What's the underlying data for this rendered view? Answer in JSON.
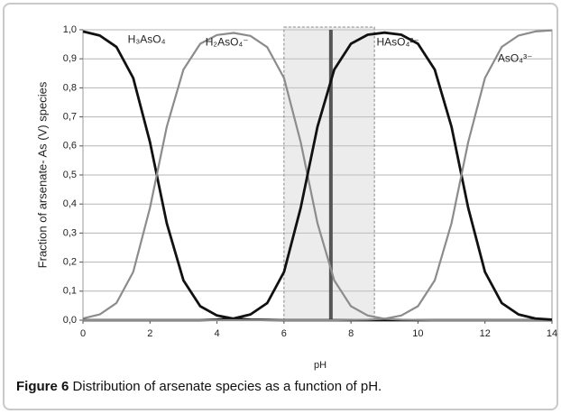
{
  "chart_data": {
    "type": "line",
    "y_label": "Fraction of arsenate- As (V) species",
    "x_label": "pH",
    "x": [
      0,
      0.5,
      1,
      1.5,
      2,
      2.5,
      3,
      3.5,
      4,
      4.5,
      5,
      5.5,
      6,
      6.5,
      7,
      7.5,
      8,
      8.5,
      9,
      9.5,
      10,
      10.5,
      11,
      11.5,
      12,
      12.5,
      13,
      13.5,
      14
    ],
    "series": [
      {
        "name": "H₃AsO₄",
        "color": "#111111",
        "values": [
          0.994,
          0.98,
          0.941,
          0.834,
          0.613,
          0.334,
          0.137,
          0.048,
          0.016,
          0.005,
          0.002,
          0.001,
          0,
          0,
          0,
          0,
          0,
          0,
          0,
          0,
          0,
          0,
          0,
          0,
          0,
          0,
          0,
          0,
          0
        ]
      },
      {
        "name": "H₂AsO₄⁻",
        "color": "#8c8c8c",
        "values": [
          0.006,
          0.02,
          0.059,
          0.166,
          0.387,
          0.666,
          0.863,
          0.952,
          0.982,
          0.989,
          0.979,
          0.94,
          0.834,
          0.613,
          0.334,
          0.137,
          0.048,
          0.016,
          0.005,
          0.002,
          0.001,
          0,
          0,
          0,
          0,
          0,
          0,
          0,
          0
        ]
      },
      {
        "name": "HAsO₄²⁻",
        "color": "#111111",
        "values": [
          0,
          0,
          0,
          0,
          0,
          0,
          0,
          0,
          0.002,
          0.006,
          0.02,
          0.059,
          0.166,
          0.387,
          0.666,
          0.863,
          0.952,
          0.983,
          0.99,
          0.983,
          0.952,
          0.863,
          0.666,
          0.387,
          0.166,
          0.059,
          0.02,
          0.006,
          0.002
        ]
      },
      {
        "name": "AsO₄³⁻",
        "color": "#8c8c8c",
        "values": [
          0,
          0,
          0,
          0,
          0,
          0,
          0,
          0,
          0,
          0,
          0,
          0,
          0,
          0,
          0,
          0,
          0.001,
          0.002,
          0.005,
          0.016,
          0.048,
          0.137,
          0.334,
          0.613,
          0.834,
          0.941,
          0.98,
          0.994,
          0.998
        ]
      }
    ],
    "shaded_range": [
      6,
      8.7
    ],
    "vertical_line": 7.4,
    "xlim": [
      0,
      14
    ],
    "xticks": [
      0,
      2,
      4,
      6,
      8,
      10,
      12,
      14
    ],
    "ylim": [
      0,
      1
    ],
    "yticks": [
      {
        "value": 0,
        "label": "0,0"
      },
      {
        "value": 0.1,
        "label": "0,1"
      },
      {
        "value": 0.2,
        "label": "0,2"
      },
      {
        "value": 0.3,
        "label": "0,3"
      },
      {
        "value": 0.4,
        "label": "0,4"
      },
      {
        "value": 0.5,
        "label": "0,5"
      },
      {
        "value": 0.6,
        "label": "0,6"
      },
      {
        "value": 0.7,
        "label": "0,7"
      },
      {
        "value": 0.8,
        "label": "0,8"
      },
      {
        "value": 0.9,
        "label": "0,9"
      },
      {
        "value": 1,
        "label": "1,0"
      }
    ],
    "grid": true
  },
  "caption": {
    "label": "Figure 6",
    "text": "Distribution of arsenate species as a function of pH."
  }
}
